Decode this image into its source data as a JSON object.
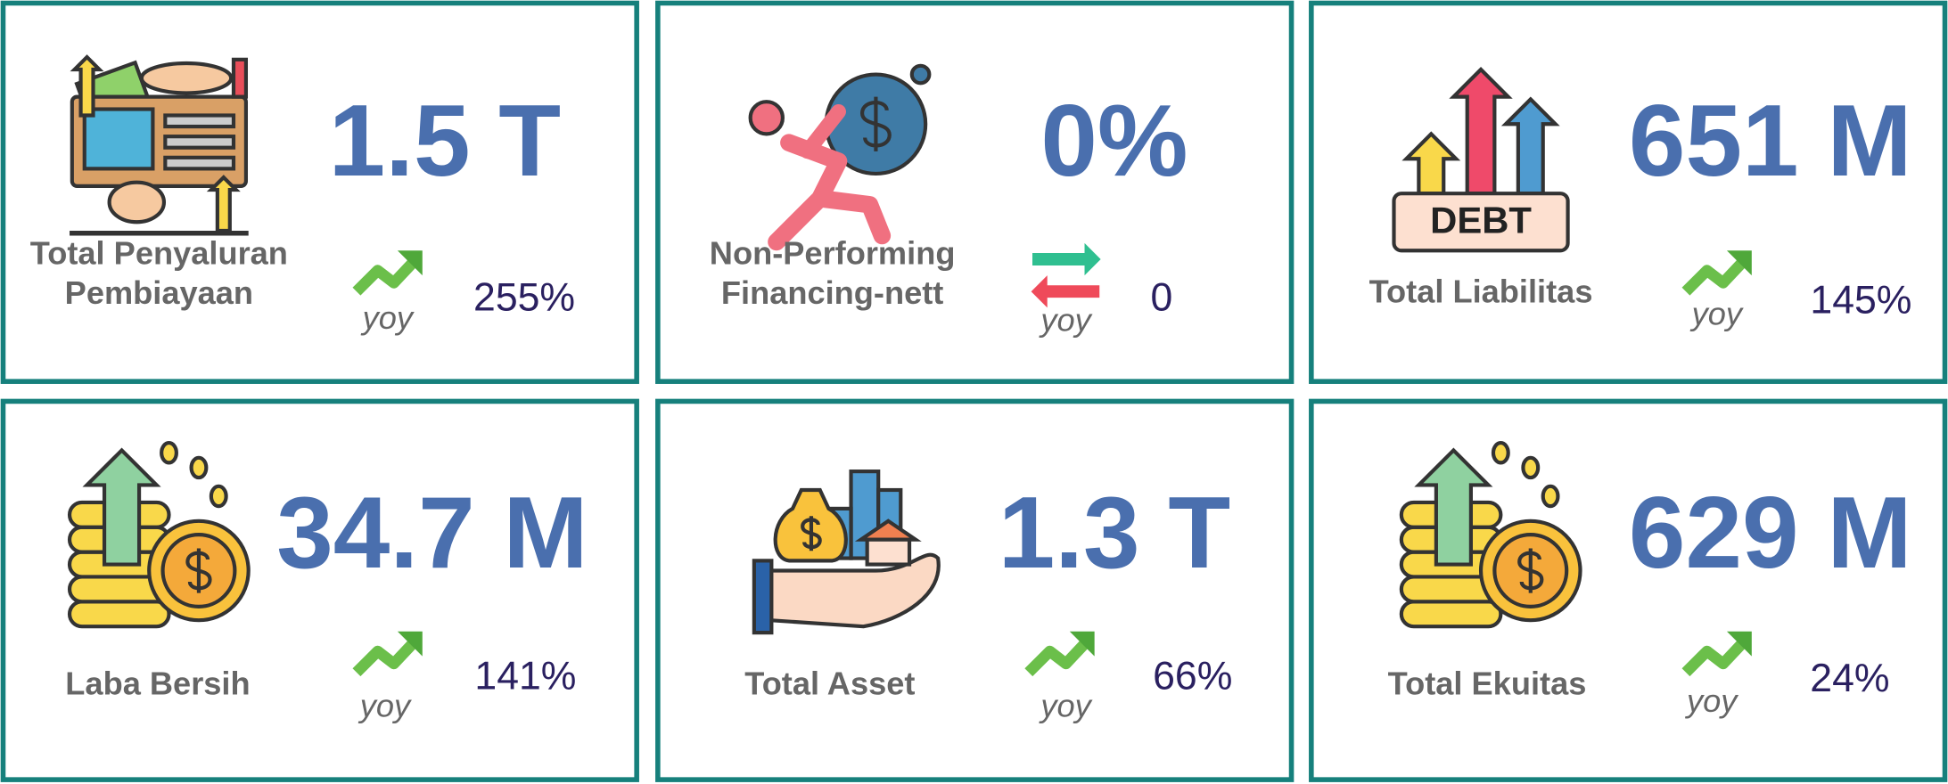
{
  "cards": [
    {
      "label": [
        "Total Penyaluran",
        "Pembiayaan"
      ],
      "value": "1.5 T",
      "trend_label": "yoy",
      "change": "255%"
    },
    {
      "label": [
        "Non-Performing",
        "Financing-nett"
      ],
      "value": "0%",
      "trend_label": "yoy",
      "change": "0"
    },
    {
      "label": [
        "Total Liabilitas"
      ],
      "value": "651 M",
      "trend_label": "yoy",
      "change": "145%",
      "icon_text": "DEBT"
    },
    {
      "label": [
        "Laba Bersih"
      ],
      "value": "34.7 M",
      "trend_label": "yoy",
      "change": "141%"
    },
    {
      "label": [
        "Total Asset"
      ],
      "value": "1.3 T",
      "trend_label": "yoy",
      "change": "66%"
    },
    {
      "label": [
        "Total Ekuitas"
      ],
      "value": "629 M",
      "trend_label": "yoy",
      "change": "24%"
    }
  ]
}
